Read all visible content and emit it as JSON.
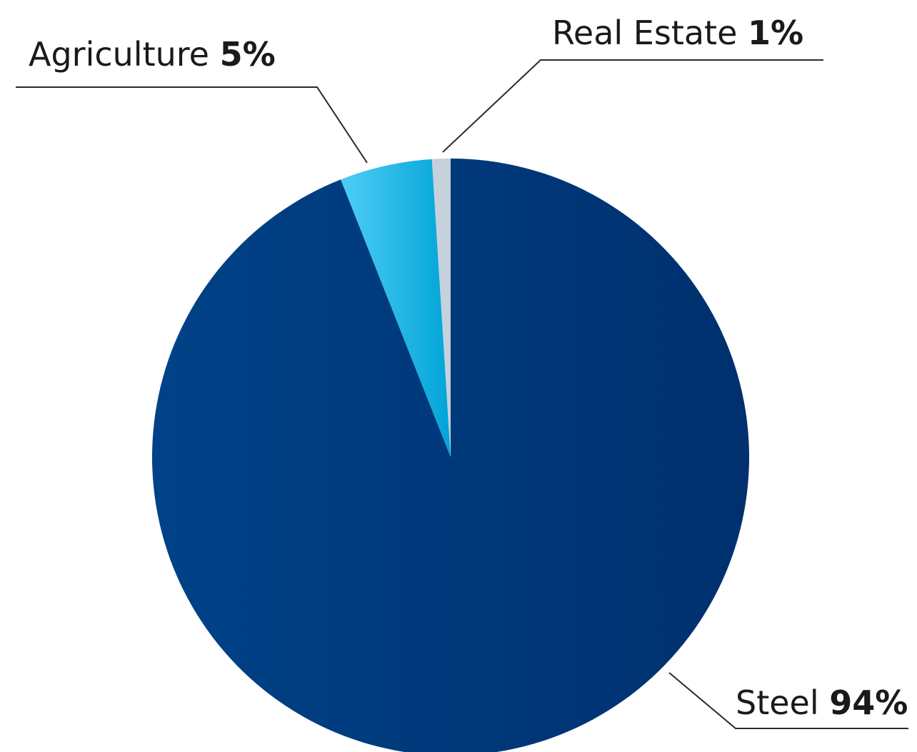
{
  "chart_data": {
    "type": "pie",
    "slices": [
      {
        "name": "Steel",
        "value": 94,
        "value_label": "94%",
        "color": "#00306e",
        "color_light": "#004288"
      },
      {
        "name": "Agriculture",
        "value": 5,
        "value_label": "5%",
        "color": "#00a4d8",
        "color_light": "#4fcdf5"
      },
      {
        "name": "Real Estate",
        "value": 1,
        "value_label": "1%",
        "color": "#c5d2db",
        "color_light": "#c5d2db"
      }
    ],
    "start": "12 o'clock",
    "direction": "clockwise",
    "legend": "none",
    "labels": "outside with leader lines"
  }
}
